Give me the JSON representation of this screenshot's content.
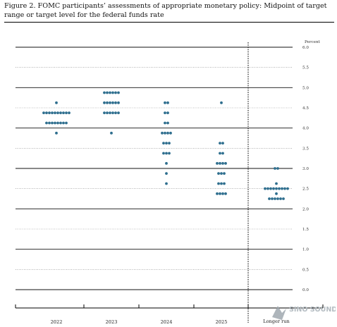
{
  "figure_title": "Figure 2.  FOMC participants’ assessments of appropriate monetary policy:  Midpoint of target range or target level for the federal funds rate",
  "watermark_text": "SINO SOUND",
  "chart_data": {
    "type": "scatter",
    "title": "",
    "ylabel": "Percent",
    "xlabel": "",
    "categories": [
      "2022",
      "2023",
      "2024",
      "2025",
      "Longer run"
    ],
    "ylim": [
      0.0,
      6.0
    ],
    "yticks": [
      "0.0",
      "0.5",
      "1.0",
      "1.5",
      "2.0",
      "2.5",
      "3.0",
      "3.5",
      "4.0",
      "4.5",
      "5.0",
      "5.5",
      "6.0"
    ],
    "dot_color": "#2e6e8e",
    "columns": [
      {
        "category": "2022",
        "points": [
          {
            "rate": 4.625,
            "count": 1
          },
          {
            "rate": 4.375,
            "count": 10
          },
          {
            "rate": 4.125,
            "count": 8
          },
          {
            "rate": 3.875,
            "count": 1
          }
        ]
      },
      {
        "category": "2023",
        "points": [
          {
            "rate": 4.875,
            "count": 6
          },
          {
            "rate": 4.625,
            "count": 6
          },
          {
            "rate": 4.375,
            "count": 6
          },
          {
            "rate": 3.875,
            "count": 1
          }
        ]
      },
      {
        "category": "2024",
        "points": [
          {
            "rate": 4.625,
            "count": 2
          },
          {
            "rate": 4.375,
            "count": 2
          },
          {
            "rate": 4.125,
            "count": 2
          },
          {
            "rate": 3.875,
            "count": 4
          },
          {
            "rate": 3.625,
            "count": 3
          },
          {
            "rate": 3.375,
            "count": 3
          },
          {
            "rate": 3.125,
            "count": 1
          },
          {
            "rate": 2.875,
            "count": 1
          },
          {
            "rate": 2.625,
            "count": 1
          }
        ]
      },
      {
        "category": "2025",
        "points": [
          {
            "rate": 4.625,
            "count": 1
          },
          {
            "rate": 3.625,
            "count": 2
          },
          {
            "rate": 3.375,
            "count": 2
          },
          {
            "rate": 3.125,
            "count": 4
          },
          {
            "rate": 2.875,
            "count": 3
          },
          {
            "rate": 2.625,
            "count": 3
          },
          {
            "rate": 2.375,
            "count": 4
          }
        ]
      },
      {
        "category": "Longer run",
        "points": [
          {
            "rate": 3.0,
            "count": 2
          },
          {
            "rate": 2.625,
            "count": 1
          },
          {
            "rate": 2.5,
            "count": 9
          },
          {
            "rate": 2.375,
            "count": 1
          },
          {
            "rate": 2.25,
            "count": 6
          }
        ]
      }
    ]
  }
}
